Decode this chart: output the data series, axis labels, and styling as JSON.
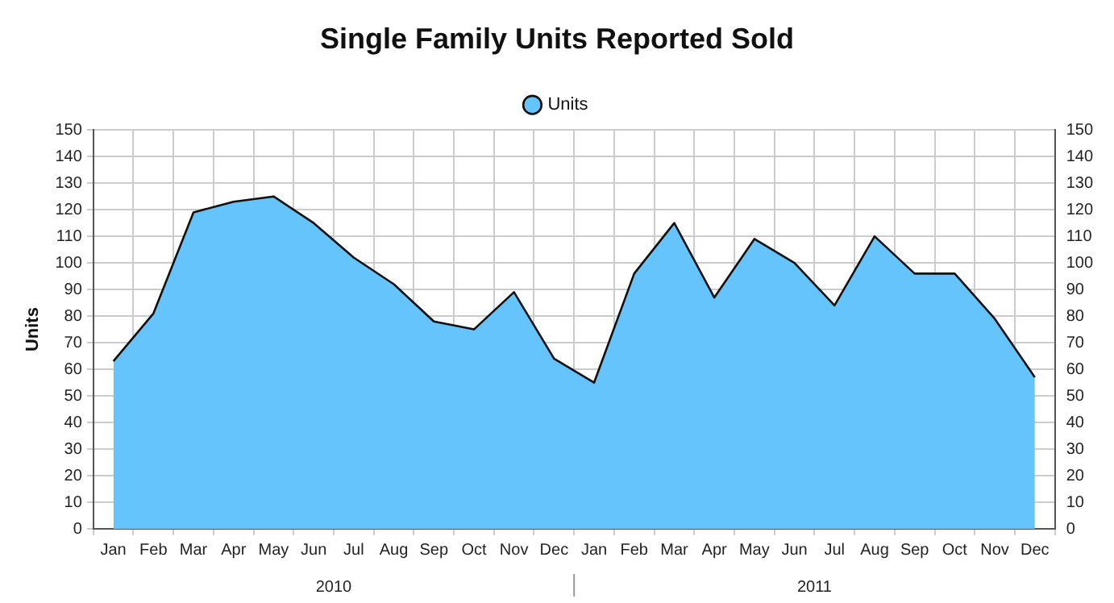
{
  "chart_data": {
    "type": "area",
    "title": "Single Family Units Reported Sold",
    "ylabel": "Units",
    "categories": [
      "Jan",
      "Feb",
      "Mar",
      "Apr",
      "May",
      "Jun",
      "Jul",
      "Aug",
      "Sep",
      "Oct",
      "Nov",
      "Dec",
      "Jan",
      "Feb",
      "Mar",
      "Apr",
      "May",
      "Jun",
      "Jul",
      "Aug",
      "Sep",
      "Oct",
      "Nov",
      "Dec"
    ],
    "series": [
      {
        "name": "Units",
        "color": "#66c4fc",
        "values": [
          63,
          81,
          119,
          123,
          125,
          115,
          102,
          92,
          78,
          75,
          89,
          64,
          55,
          96,
          115,
          87,
          109,
          100,
          84,
          110,
          96,
          96,
          79,
          57
        ]
      }
    ],
    "annotations": [
      "2010",
      "2011"
    ],
    "ylim": [
      0,
      150
    ],
    "yticks": [
      0,
      10,
      20,
      30,
      40,
      50,
      60,
      70,
      80,
      90,
      100,
      110,
      120,
      130,
      140,
      150
    ],
    "y2lim": [
      0,
      150
    ],
    "y2ticks": [
      0,
      10,
      20,
      30,
      40,
      50,
      60,
      70,
      80,
      90,
      100,
      110,
      120,
      130,
      140,
      150
    ],
    "grid": true,
    "legend": "top",
    "marker": "none",
    "line_style": "solid"
  }
}
